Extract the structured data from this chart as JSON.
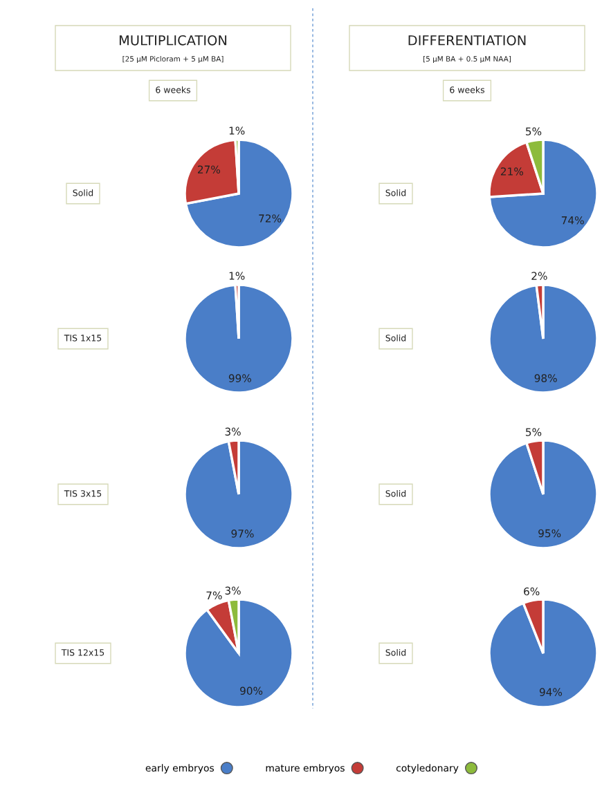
{
  "chart_data": [
    {
      "type": "other",
      "title": "MULTIPLICATION",
      "subtitle": "[25 µM Picloram + 5 µM BA]",
      "annotations": [
        "6 weeks"
      ]
    },
    {
      "type": "pie",
      "title": "Solid",
      "categories": [
        "early embryos",
        "mature embryos",
        "cotyledonary"
      ],
      "values": [
        72,
        27,
        1
      ],
      "value_labels": [
        "72%",
        "27%",
        "1%"
      ],
      "colors": [
        "#4a7ec8",
        "#c43c37",
        "#8dbb3c"
      ],
      "legend": "bottom"
    },
    {
      "type": "pie",
      "title": "TIS 1x15",
      "categories": [
        null,
        null
      ],
      "values": [
        99,
        1
      ],
      "value_labels": [
        "99%",
        "1%"
      ],
      "colors": [
        "#4a7ec8",
        "#c43c37"
      ]
    },
    {
      "type": "pie",
      "title": "TIS 3x15",
      "categories": [
        null,
        null
      ],
      "values": [
        97,
        3
      ],
      "value_labels": [
        "97%",
        "3%"
      ],
      "colors": [
        "#4a7ec8",
        "#c43c37"
      ]
    },
    {
      "type": "pie",
      "title": "TIS 12x15",
      "categories": [
        null,
        null,
        null
      ],
      "values": [
        90,
        7,
        3
      ],
      "value_labels": [
        "90%",
        "7%",
        "3%"
      ],
      "colors": [
        "#4a7ec8",
        "#c43c37",
        "#8dbb3c"
      ]
    },
    {
      "type": "other",
      "title": "DIFFERENTIATION",
      "subtitle": "[5 µM BA + 0.5 µM NAA]",
      "annotations": [
        "6 weeks"
      ]
    },
    {
      "type": "pie",
      "title": "Solid",
      "categories": [
        null,
        null,
        null
      ],
      "values": [
        74,
        21,
        5
      ],
      "value_labels": [
        "74%",
        "21%",
        "5%"
      ],
      "colors": [
        "#4a7ec8",
        "#c43c37",
        "#8dbb3c"
      ]
    },
    {
      "type": "pie",
      "title": "Solid",
      "categories": [
        null,
        null
      ],
      "values": [
        98,
        2
      ],
      "value_labels": [
        "98%",
        "2%"
      ],
      "colors": [
        "#4a7ec8",
        "#c43c37"
      ]
    },
    {
      "type": "pie",
      "title": "Solid",
      "categories": [
        null,
        null
      ],
      "values": [
        95,
        5
      ],
      "value_labels": [
        "95%",
        "5%"
      ],
      "colors": [
        "#4a7ec8",
        "#c43c37"
      ]
    },
    {
      "type": "pie",
      "title": "Solid",
      "categories": [
        null,
        null
      ],
      "values": [
        94,
        6
      ],
      "value_labels": [
        "94%",
        "6%"
      ],
      "colors": [
        "#4a7ec8",
        "#c43c37"
      ]
    }
  ]
}
